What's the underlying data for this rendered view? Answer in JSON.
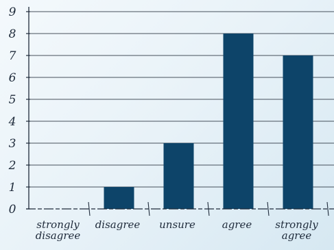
{
  "chart_data": {
    "type": "bar",
    "categories": [
      "strongly disagree",
      "disagree",
      "unsure",
      "agree",
      "strongly agree"
    ],
    "values": [
      0,
      1,
      3,
      8,
      7
    ],
    "title": "",
    "xlabel": "",
    "ylabel": "",
    "ylim": [
      0,
      9
    ],
    "yticks": [
      "0",
      "1",
      "2",
      "3",
      "4",
      "5",
      "6",
      "7",
      "8",
      "9"
    ],
    "grid": true,
    "legend": "none"
  },
  "colors": {
    "bar": "#0d4469",
    "grid": "#2a3440",
    "axis": "#1e2a3a",
    "text": "#1e2a3a"
  }
}
